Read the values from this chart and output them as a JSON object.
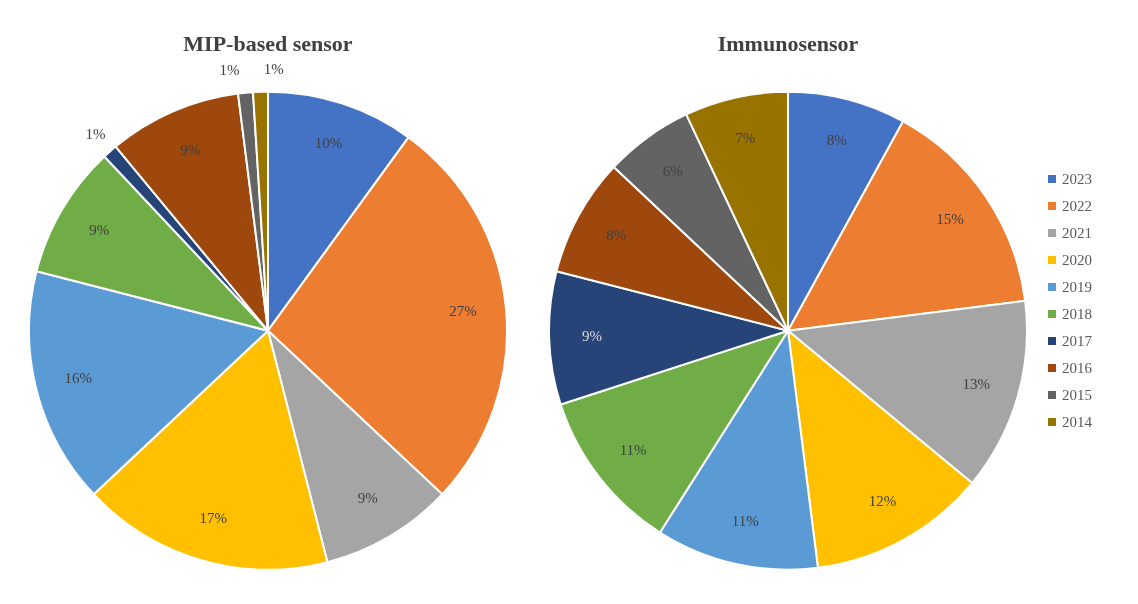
{
  "chart_data": [
    {
      "type": "pie",
      "title": "MIP-based sensor",
      "categories": [
        null,
        null,
        null,
        null,
        null,
        null,
        null,
        null,
        null,
        null
      ],
      "values": [
        10,
        27,
        9,
        17,
        16,
        9,
        1,
        9,
        1,
        1
      ],
      "data_labels": true,
      "value_labels": [
        "10%",
        "27%",
        "9%",
        "17%",
        "16%",
        "9%",
        "1%",
        "9%",
        "1%",
        "1%"
      ],
      "colors": [
        "#4472c4",
        "#ed7d31",
        "#a5a5a5",
        "#ffc000",
        "#5b9bd5",
        "#70ad47",
        "#264478",
        "#9e480e",
        "#636363",
        "#997300"
      ],
      "legend": false
    },
    {
      "type": "pie",
      "title": "Immunosensor",
      "categories": [
        "2023",
        "2022",
        "2021",
        "2020",
        "2019",
        "2018",
        "2017",
        "2016",
        "2015",
        "2014"
      ],
      "values": [
        8,
        15,
        13,
        12,
        11,
        11,
        9,
        8,
        6,
        7
      ],
      "data_labels": true,
      "value_labels": [
        "8%",
        "15%",
        "13%",
        "12%",
        "11%",
        "11%",
        "9%",
        "8%",
        "6%",
        "7%"
      ],
      "colors": [
        "#4472c4",
        "#ed7d31",
        "#a5a5a5",
        "#ffc000",
        "#5b9bd5",
        "#70ad47",
        "#264478",
        "#9e480e",
        "#636363",
        "#997300"
      ],
      "legend": "right"
    }
  ]
}
